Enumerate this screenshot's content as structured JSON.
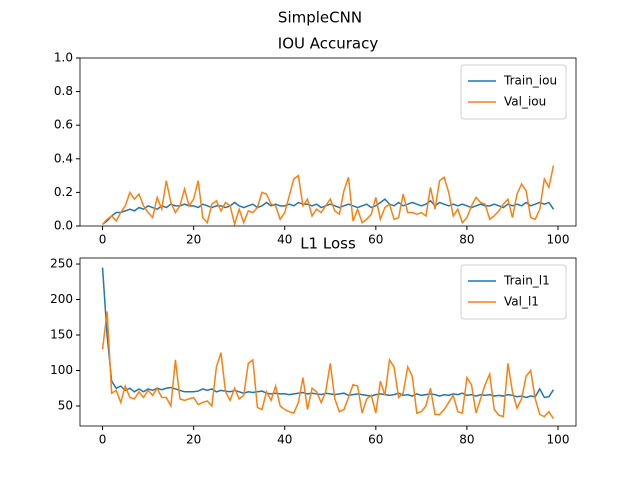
{
  "title": "SimpleCNN",
  "chart_data": [
    {
      "type": "line",
      "title": "IOU Accuracy",
      "legend": "upper right",
      "x": [
        0,
        1,
        2,
        3,
        4,
        5,
        6,
        7,
        8,
        9,
        10,
        11,
        12,
        13,
        14,
        15,
        16,
        17,
        18,
        19,
        20,
        21,
        22,
        23,
        24,
        25,
        26,
        27,
        28,
        29,
        30,
        31,
        32,
        33,
        34,
        35,
        36,
        37,
        38,
        39,
        40,
        41,
        42,
        43,
        44,
        45,
        46,
        47,
        48,
        49,
        50,
        51,
        52,
        53,
        54,
        55,
        56,
        57,
        58,
        59,
        60,
        61,
        62,
        63,
        64,
        65,
        66,
        67,
        68,
        69,
        70,
        71,
        72,
        73,
        74,
        75,
        76,
        77,
        78,
        79,
        80,
        81,
        82,
        83,
        84,
        85,
        86,
        87,
        88,
        89,
        90,
        91,
        92,
        93,
        94,
        95,
        96,
        97,
        98,
        99
      ],
      "xlim": [
        -4.95,
        103.95
      ],
      "xticks": [
        0,
        20,
        40,
        60,
        80,
        100
      ],
      "ylim": [
        0,
        1
      ],
      "yticks": [
        {
          "value": 0,
          "label": "0.0"
        },
        {
          "value": 0.2,
          "label": "0.2"
        },
        {
          "value": 0.4,
          "label": "0.4"
        },
        {
          "value": 0.6,
          "label": "0.6"
        },
        {
          "value": 0.8,
          "label": "0.8"
        },
        {
          "value": 1,
          "label": "1.0"
        }
      ],
      "series": [
        {
          "name": "Train_iou",
          "color": "#1f77b4",
          "values": [
            0.01,
            0.03,
            0.06,
            0.08,
            0.08,
            0.09,
            0.1,
            0.09,
            0.11,
            0.1,
            0.12,
            0.11,
            0.1,
            0.12,
            0.11,
            0.13,
            0.12,
            0.12,
            0.13,
            0.12,
            0.12,
            0.11,
            0.13,
            0.12,
            0.11,
            0.12,
            0.12,
            0.11,
            0.12,
            0.14,
            0.12,
            0.11,
            0.12,
            0.13,
            0.11,
            0.12,
            0.14,
            0.12,
            0.13,
            0.12,
            0.12,
            0.13,
            0.12,
            0.14,
            0.13,
            0.13,
            0.12,
            0.13,
            0.11,
            0.12,
            0.13,
            0.12,
            0.11,
            0.12,
            0.13,
            0.12,
            0.11,
            0.12,
            0.13,
            0.11,
            0.12,
            0.14,
            0.16,
            0.13,
            0.12,
            0.14,
            0.12,
            0.13,
            0.14,
            0.13,
            0.12,
            0.13,
            0.15,
            0.12,
            0.14,
            0.13,
            0.12,
            0.13,
            0.12,
            0.13,
            0.12,
            0.11,
            0.12,
            0.13,
            0.12,
            0.12,
            0.13,
            0.12,
            0.11,
            0.13,
            0.12,
            0.13,
            0.12,
            0.14,
            0.12,
            0.13,
            0.14,
            0.13,
            0.14,
            0.1
          ]
        },
        {
          "name": "Val_iou",
          "color": "#ff7f0e",
          "values": [
            0.01,
            0.04,
            0.06,
            0.03,
            0.08,
            0.12,
            0.2,
            0.16,
            0.19,
            0.12,
            0.08,
            0.05,
            0.17,
            0.1,
            0.27,
            0.14,
            0.08,
            0.12,
            0.22,
            0.12,
            0.16,
            0.27,
            0.05,
            0.02,
            0.13,
            0.15,
            0.09,
            0.14,
            0.12,
            0.01,
            0.1,
            0.02,
            0.09,
            0.08,
            0.11,
            0.2,
            0.19,
            0.13,
            0.12,
            0.04,
            0.08,
            0.18,
            0.28,
            0.3,
            0.12,
            0.16,
            0.06,
            0.1,
            0.08,
            0.12,
            0.16,
            0.09,
            0.07,
            0.21,
            0.29,
            0.03,
            0.1,
            0.02,
            0.04,
            0.07,
            0.17,
            0.04,
            0.11,
            0.13,
            0.04,
            0.05,
            0.19,
            0.08,
            0.08,
            0.07,
            0.08,
            0.06,
            0.23,
            0.1,
            0.27,
            0.29,
            0.2,
            0.06,
            0.1,
            0.02,
            0.05,
            0.12,
            0.17,
            0.14,
            0.13,
            0.04,
            0.06,
            0.09,
            0.13,
            0.16,
            0.05,
            0.19,
            0.25,
            0.21,
            0.05,
            0.04,
            0.1,
            0.28,
            0.23,
            0.36
          ]
        }
      ]
    },
    {
      "type": "line",
      "title": "L1 Loss",
      "legend": "upper right",
      "x": [
        0,
        1,
        2,
        3,
        4,
        5,
        6,
        7,
        8,
        9,
        10,
        11,
        12,
        13,
        14,
        15,
        16,
        17,
        18,
        19,
        20,
        21,
        22,
        23,
        24,
        25,
        26,
        27,
        28,
        29,
        30,
        31,
        32,
        33,
        34,
        35,
        36,
        37,
        38,
        39,
        40,
        41,
        42,
        43,
        44,
        45,
        46,
        47,
        48,
        49,
        50,
        51,
        52,
        53,
        54,
        55,
        56,
        57,
        58,
        59,
        60,
        61,
        62,
        63,
        64,
        65,
        66,
        67,
        68,
        69,
        70,
        71,
        72,
        73,
        74,
        75,
        76,
        77,
        78,
        79,
        80,
        81,
        82,
        83,
        84,
        85,
        86,
        87,
        88,
        89,
        90,
        91,
        92,
        93,
        94,
        95,
        96,
        97,
        98,
        99
      ],
      "xlim": [
        -4.95,
        103.95
      ],
      "xticks": [
        0,
        20,
        40,
        60,
        80,
        100
      ],
      "ylim": [
        21.8,
        258.5
      ],
      "yticks": [
        50,
        100,
        150,
        200,
        250
      ],
      "series": [
        {
          "name": "Train_l1",
          "color": "#1f77b4",
          "values": [
            245,
            150,
            85,
            75,
            78,
            72,
            75,
            70,
            74,
            70,
            74,
            72,
            75,
            73,
            75,
            76,
            74,
            72,
            70,
            70,
            70,
            71,
            74,
            72,
            74,
            70,
            72,
            71,
            70,
            72,
            70,
            68,
            70,
            69,
            70,
            71,
            68,
            67,
            68,
            67,
            67,
            66,
            67,
            68,
            69,
            67,
            68,
            67,
            66,
            68,
            67,
            66,
            67,
            68,
            65,
            66,
            67,
            66,
            65,
            64,
            66,
            67,
            66,
            65,
            66,
            68,
            65,
            66,
            64,
            67,
            65,
            66,
            67,
            66,
            64,
            66,
            65,
            67,
            66,
            68,
            65,
            66,
            64,
            66,
            65,
            66,
            64,
            65,
            64,
            66,
            65,
            63,
            64,
            62,
            64,
            63,
            74,
            62,
            63,
            73
          ]
        },
        {
          "name": "Val_l1",
          "color": "#ff7f0e",
          "values": [
            130,
            183,
            68,
            72,
            55,
            78,
            62,
            60,
            70,
            62,
            72,
            65,
            75,
            62,
            62,
            50,
            115,
            60,
            58,
            60,
            62,
            52,
            55,
            57,
            50,
            105,
            125,
            70,
            58,
            75,
            60,
            65,
            110,
            115,
            48,
            45,
            70,
            58,
            78,
            50,
            45,
            42,
            40,
            55,
            90,
            45,
            75,
            70,
            55,
            70,
            110,
            60,
            42,
            45,
            62,
            80,
            78,
            40,
            60,
            65,
            40,
            85,
            65,
            115,
            105,
            62,
            68,
            105,
            92,
            40,
            42,
            50,
            75,
            38,
            38,
            45,
            55,
            65,
            42,
            40,
            90,
            80,
            40,
            60,
            80,
            95,
            45,
            37,
            35,
            110,
            70,
            47,
            60,
            92,
            100,
            60,
            38,
            35,
            42,
            32
          ]
        }
      ]
    }
  ]
}
